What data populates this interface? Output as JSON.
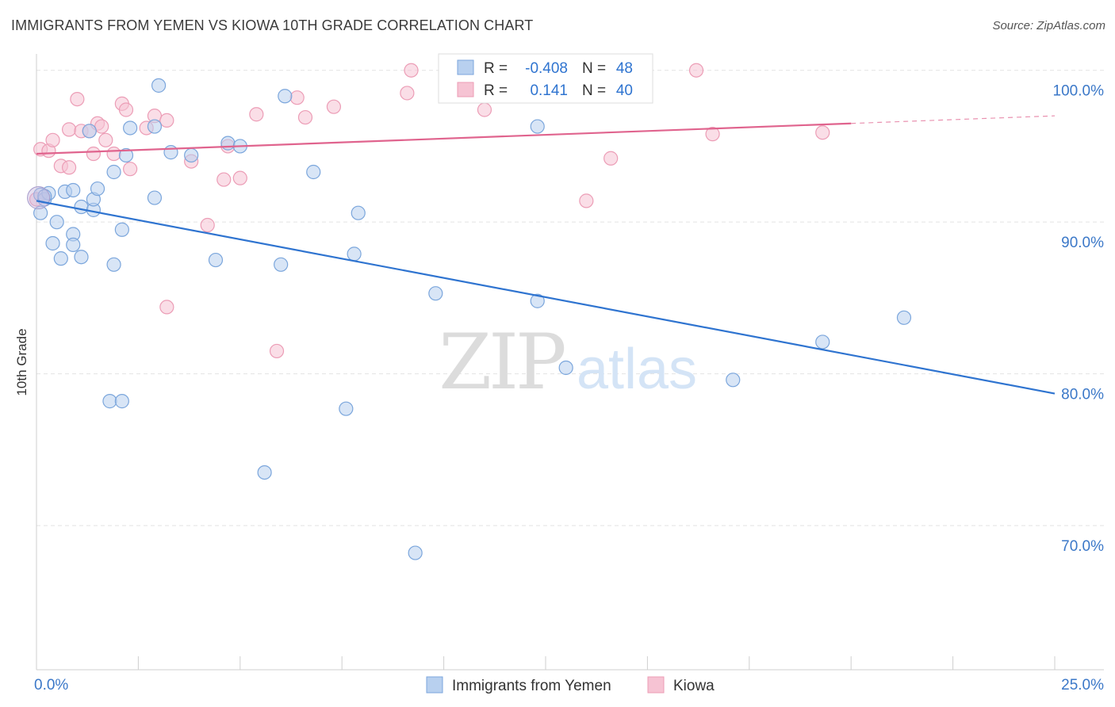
{
  "header": {
    "title": "IMMIGRANTS FROM YEMEN VS KIOWA 10TH GRADE CORRELATION CHART",
    "source": "Source: ZipAtlas.com"
  },
  "watermark": {
    "zip": "ZIP",
    "atlas": "atlas"
  },
  "colors": {
    "blue_fill": "#b8d0ef",
    "blue_stroke": "#7ba6dc",
    "blue_line": "#2f74d0",
    "pink_fill": "#f6c3d3",
    "pink_stroke": "#ec9db6",
    "pink_line": "#e0648e",
    "axis_label": "#3b78c8",
    "grid": "#e3e3e3"
  },
  "stats": [
    {
      "r_label": "R =",
      "r_value": "-0.408",
      "n_label": "N =",
      "n_value": "48"
    },
    {
      "r_label": "R =",
      "r_value": "0.141",
      "n_label": "N =",
      "n_value": "40"
    }
  ],
  "chart_data": {
    "type": "scatter",
    "title": "IMMIGRANTS FROM YEMEN VS KIOWA 10TH GRADE CORRELATION CHART",
    "xlabel": "",
    "ylabel": "10th Grade",
    "xlim": [
      0,
      25
    ],
    "ylim": [
      60.5,
      101.5
    ],
    "x_tick_labels": [
      {
        "value": 0,
        "label": "0.0%"
      },
      {
        "value": 25,
        "label": "25.0%"
      }
    ],
    "x_minor_ticks": [
      2.5,
      5,
      7.5,
      10,
      12.5,
      15,
      17.5,
      20,
      22.5,
      25
    ],
    "y_ticks": [
      {
        "value": 100,
        "label": "100.0%"
      },
      {
        "value": 90,
        "label": "90.0%"
      },
      {
        "value": 80,
        "label": "80.0%"
      },
      {
        "value": 70,
        "label": "70.0%"
      }
    ],
    "legend": [
      "Immigrants from Yemen",
      "Kiowa"
    ],
    "series": [
      {
        "name": "Immigrants from Yemen",
        "color": "blue",
        "trend": {
          "x": [
            0,
            25
          ],
          "y": [
            91.4,
            78.7
          ],
          "dash_from": null
        },
        "points": [
          [
            0.1,
            91.8
          ],
          [
            0.1,
            90.6
          ],
          [
            0.2,
            91.5
          ],
          [
            0.3,
            91.9
          ],
          [
            0.4,
            88.6
          ],
          [
            0.5,
            90.0
          ],
          [
            0.6,
            87.6
          ],
          [
            0.7,
            92.0
          ],
          [
            0.9,
            92.1
          ],
          [
            0.9,
            89.2
          ],
          [
            0.9,
            88.5
          ],
          [
            1.1,
            91.0
          ],
          [
            1.1,
            87.7
          ],
          [
            1.3,
            96.0
          ],
          [
            1.4,
            90.8
          ],
          [
            1.4,
            91.5
          ],
          [
            1.5,
            92.2
          ],
          [
            1.8,
            78.2
          ],
          [
            1.9,
            87.2
          ],
          [
            1.9,
            93.3
          ],
          [
            2.1,
            89.5
          ],
          [
            2.1,
            78.2
          ],
          [
            2.2,
            94.4
          ],
          [
            2.3,
            96.2
          ],
          [
            2.9,
            96.3
          ],
          [
            2.9,
            91.6
          ],
          [
            3.0,
            99.0
          ],
          [
            3.3,
            94.6
          ],
          [
            3.8,
            94.4
          ],
          [
            4.4,
            87.5
          ],
          [
            4.7,
            95.2
          ],
          [
            5.0,
            95.0
          ],
          [
            5.6,
            73.5
          ],
          [
            6.0,
            87.2
          ],
          [
            6.1,
            98.3
          ],
          [
            6.8,
            93.3
          ],
          [
            7.6,
            77.7
          ],
          [
            7.8,
            87.9
          ],
          [
            7.9,
            90.6
          ],
          [
            9.3,
            68.2
          ],
          [
            9.8,
            85.3
          ],
          [
            12.3,
            96.3
          ],
          [
            12.3,
            84.8
          ],
          [
            13.0,
            80.4
          ],
          [
            17.1,
            79.6
          ],
          [
            19.3,
            82.1
          ],
          [
            21.3,
            83.7
          ],
          [
            0.2,
            91.7
          ]
        ]
      },
      {
        "name": "Kiowa",
        "color": "pink",
        "trend": {
          "x": [
            0,
            20.0
          ],
          "y": [
            94.5,
            96.5
          ],
          "dash_from": 20.0,
          "dash_to": 25,
          "dash_to_y": 97.0
        },
        "points": [
          [
            0.1,
            94.8
          ],
          [
            0.3,
            94.7
          ],
          [
            0.4,
            95.4
          ],
          [
            0.6,
            93.7
          ],
          [
            0.8,
            93.6
          ],
          [
            0.8,
            96.1
          ],
          [
            1.0,
            98.1
          ],
          [
            1.1,
            96.0
          ],
          [
            1.3,
            96.0
          ],
          [
            1.4,
            94.5
          ],
          [
            1.5,
            96.5
          ],
          [
            1.6,
            96.3
          ],
          [
            1.7,
            95.4
          ],
          [
            1.9,
            94.5
          ],
          [
            2.1,
            97.8
          ],
          [
            2.2,
            97.4
          ],
          [
            2.3,
            93.5
          ],
          [
            2.7,
            96.2
          ],
          [
            2.9,
            97.0
          ],
          [
            3.2,
            96.7
          ],
          [
            3.2,
            84.4
          ],
          [
            3.8,
            94.0
          ],
          [
            4.2,
            89.8
          ],
          [
            4.6,
            92.8
          ],
          [
            4.7,
            95.0
          ],
          [
            5.0,
            92.9
          ],
          [
            5.4,
            97.1
          ],
          [
            5.9,
            81.5
          ],
          [
            6.4,
            98.2
          ],
          [
            6.6,
            96.9
          ],
          [
            7.3,
            97.6
          ],
          [
            9.1,
            98.5
          ],
          [
            9.2,
            100.0
          ],
          [
            11.0,
            97.4
          ],
          [
            13.5,
            91.4
          ],
          [
            14.1,
            94.2
          ],
          [
            16.2,
            100.0
          ],
          [
            16.6,
            95.8
          ],
          [
            19.3,
            95.9
          ],
          [
            0.0,
            91.5
          ]
        ]
      }
    ]
  }
}
